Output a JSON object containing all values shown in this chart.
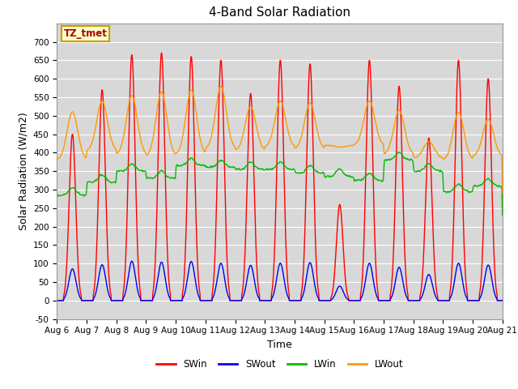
{
  "title": "4-Band Solar Radiation",
  "xlabel": "Time",
  "ylabel": "Solar Radiation (W/m2)",
  "ylim": [
    -50,
    750
  ],
  "colors": {
    "SWin": "#ff0000",
    "SWout": "#0000ee",
    "LWin": "#00bb00",
    "LWout": "#ff9900"
  },
  "background_color": "#ffffff",
  "plot_bg_color": "#d8d8d8",
  "annotation_text": "TZ_tmet",
  "annotation_color": "#aa0000",
  "annotation_bg": "#ffffcc",
  "annotation_edge": "#cc9900",
  "grid_color": "#ffffff",
  "title_fontsize": 11,
  "label_fontsize": 9,
  "tick_fontsize": 7.5,
  "legend_fontsize": 8.5,
  "linewidth": 1.0,
  "x_tick_labels": [
    "Aug 6",
    "Aug 7",
    "Aug 8",
    "Aug 9",
    "Aug 10",
    "Aug 11",
    "Aug 12",
    "Aug 13",
    "Aug 14",
    "Aug 15",
    "Aug 16",
    "Aug 17",
    "Aug 18",
    "Aug 19",
    "Aug 20",
    "Aug 21"
  ],
  "yticks": [
    -50,
    0,
    50,
    100,
    150,
    200,
    250,
    300,
    350,
    400,
    450,
    500,
    550,
    600,
    650,
    700
  ],
  "swin_peaks": [
    450,
    570,
    665,
    670,
    660,
    650,
    560,
    650,
    640,
    260,
    650,
    580,
    440,
    650,
    600
  ],
  "swout_scales": [
    0.19,
    0.17,
    0.16,
    0.155,
    0.16,
    0.155,
    0.17,
    0.155,
    0.16,
    0.15,
    0.155,
    0.155,
    0.16,
    0.155,
    0.16
  ],
  "lwin_base": [
    285,
    320,
    350,
    330,
    365,
    360,
    355,
    355,
    345,
    335,
    325,
    380,
    350,
    295,
    310
  ],
  "lwout_base": [
    380,
    405,
    395,
    390,
    395,
    410,
    405,
    415,
    410,
    420,
    420,
    395,
    385,
    380,
    390
  ],
  "lwout_peak": [
    510,
    540,
    555,
    565,
    570,
    580,
    525,
    540,
    535,
    415,
    540,
    515,
    430,
    510,
    490
  ]
}
